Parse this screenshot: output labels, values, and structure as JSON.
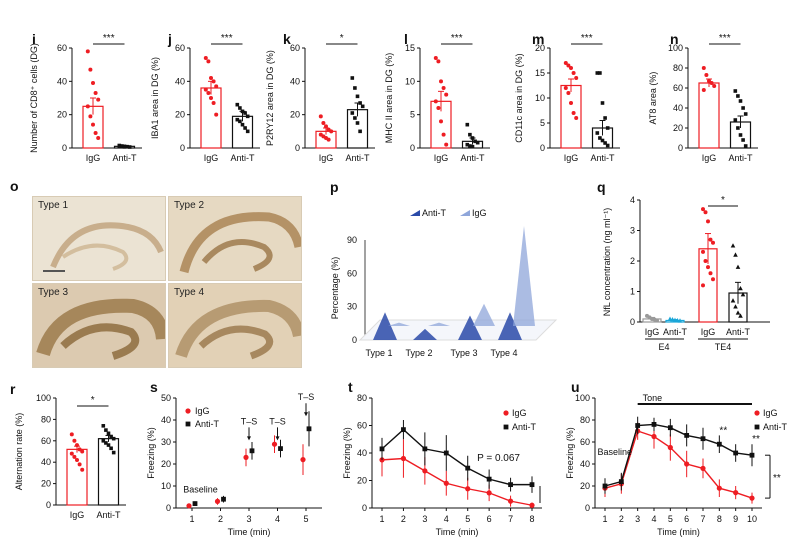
{
  "colors": {
    "igg": "#ee1d23",
    "antit": "#111111",
    "e4_igg": "#9a9a9a",
    "e4_antit": "#1aa6d8",
    "p_antit": "#2a4aa8",
    "p_igg": "#8fa6da"
  },
  "panel_letters": {
    "i": "i",
    "j": "j",
    "k": "k",
    "l": "l",
    "m": "m",
    "n": "n",
    "o": "o",
    "p": "p",
    "q": "q",
    "r": "r",
    "s": "s",
    "t": "t",
    "u": "u"
  },
  "micrographs": [
    {
      "label": "Type 1"
    },
    {
      "label": "Type 2"
    },
    {
      "label": "Type 3"
    },
    {
      "label": "Type 4"
    }
  ],
  "annotations": {
    "t_pvalue": "P = 0.067",
    "s_baseline": "Baseline",
    "s_ts": "T–S",
    "u_tone": "Tone",
    "u_baseline": "Baseline"
  },
  "chart_data": [
    {
      "id": "i",
      "type": "bar",
      "categories": [
        "IgG",
        "Anti-T"
      ],
      "values": [
        25,
        1
      ],
      "errors": [
        5,
        0.5
      ],
      "ylabel": "Number of CD8⁺ cells (DG)",
      "ylim": [
        0,
        60
      ],
      "yticks": [
        0,
        20,
        40,
        60
      ],
      "sig": "***",
      "points": [
        [
          58,
          47,
          39,
          33,
          29,
          25,
          19,
          14,
          9,
          6
        ],
        [
          1.5,
          1.2,
          1,
          0.8,
          0.6,
          1.1,
          0.9,
          0.7
        ]
      ]
    },
    {
      "id": "j",
      "type": "bar",
      "categories": [
        "IgG",
        "Anti-T"
      ],
      "values": [
        36,
        19
      ],
      "errors": [
        4,
        3
      ],
      "ylabel": "IBA1 area in DG (%)",
      "ylim": [
        0,
        60
      ],
      "yticks": [
        0,
        20,
        40,
        60
      ],
      "sig": "***",
      "points": [
        [
          54,
          52,
          42,
          40,
          37,
          35,
          33,
          30,
          27,
          20
        ],
        [
          26,
          24,
          22,
          21,
          19,
          17,
          16,
          14,
          12,
          10
        ]
      ]
    },
    {
      "id": "k",
      "type": "bar",
      "categories": [
        "IgG",
        "Anti-T"
      ],
      "values": [
        10,
        23
      ],
      "errors": [
        2,
        4
      ],
      "ylabel": "P2RY12 area in DG (%)",
      "ylim": [
        0,
        60
      ],
      "yticks": [
        0,
        20,
        40,
        60
      ],
      "sig": "*",
      "points": [
        [
          19,
          15,
          13,
          11,
          10,
          8,
          7,
          6,
          5
        ],
        [
          42,
          36,
          31,
          27,
          25,
          21,
          18,
          15,
          10
        ]
      ]
    },
    {
      "id": "l",
      "type": "bar",
      "categories": [
        "IgG",
        "Anti-T"
      ],
      "values": [
        7,
        1
      ],
      "errors": [
        1.5,
        0.5
      ],
      "ylabel": "MHC II area in DG (%)",
      "ylim": [
        0,
        15
      ],
      "yticks": [
        0,
        5,
        10,
        15
      ],
      "sig": "***",
      "points": [
        [
          13.5,
          13,
          10,
          9,
          8,
          7,
          6,
          4,
          2,
          0.5
        ],
        [
          3.5,
          2,
          1.5,
          1,
          0.8,
          0.5,
          0.3,
          0.2
        ]
      ]
    },
    {
      "id": "m",
      "type": "bar",
      "categories": [
        "IgG",
        "Anti-T"
      ],
      "values": [
        12.5,
        4
      ],
      "errors": [
        1.3,
        1.5
      ],
      "ylabel": "CD11c area in DG (%)",
      "ylim": [
        0,
        20
      ],
      "yticks": [
        0,
        5,
        10,
        15,
        20
      ],
      "sig": "***",
      "points": [
        [
          17,
          16.5,
          16,
          15,
          14,
          12,
          11,
          9,
          7,
          6
        ],
        [
          15,
          15,
          9,
          6,
          4,
          3,
          2,
          1.5,
          1,
          0.5
        ]
      ]
    },
    {
      "id": "n",
      "type": "bar",
      "categories": [
        "IgG",
        "Anti-T"
      ],
      "values": [
        65,
        26
      ],
      "errors": [
        4,
        6
      ],
      "ylabel": "AT8 area (%)",
      "ylim": [
        0,
        100
      ],
      "yticks": [
        0,
        20,
        40,
        60,
        80,
        100
      ],
      "sig": "***",
      "points": [
        [
          80,
          73,
          67,
          65,
          62,
          58
        ],
        [
          57,
          52,
          47,
          40,
          34,
          28,
          20,
          13,
          8,
          2
        ]
      ]
    },
    {
      "id": "p",
      "type": "area",
      "categories": [
        "Type 1",
        "Type 2",
        "Type 3",
        "Type 4"
      ],
      "series": [
        {
          "name": "Anti-T",
          "values": [
            25,
            10,
            22,
            25
          ]
        },
        {
          "name": "IgG",
          "values": [
            3,
            3,
            20,
            90
          ]
        }
      ],
      "ylabel": "Percentage (%)",
      "ylim": [
        0,
        90
      ],
      "yticks": [
        0,
        30,
        60,
        90
      ]
    },
    {
      "id": "q",
      "type": "bar",
      "groups": [
        "E4",
        "TE4"
      ],
      "categories": [
        "IgG",
        "Anti-T",
        "IgG",
        "Anti-T"
      ],
      "values": [
        0.1,
        0.05,
        2.4,
        0.95
      ],
      "errors": [
        0.05,
        0.03,
        0.5,
        0.35
      ],
      "ylabel": "NfL concentration (ng ml⁻¹)",
      "ylim": [
        0,
        4
      ],
      "yticks": [
        0,
        1,
        2,
        3,
        4
      ],
      "sig": "*",
      "points": [
        [
          0.2,
          0.15,
          0.1,
          0.08,
          0.05
        ],
        [
          0.1,
          0.08,
          0.06,
          0.05,
          0.04
        ],
        [
          3.7,
          3.6,
          3.3,
          2.7,
          2.6,
          2.3,
          2.0,
          1.8,
          1.6,
          1.4,
          1.2
        ],
        [
          2.5,
          2.2,
          1.8,
          1.1,
          0.9,
          0.7,
          0.5,
          0.3,
          0.2
        ]
      ]
    },
    {
      "id": "r",
      "type": "bar",
      "categories": [
        "IgG",
        "Anti-T"
      ],
      "values": [
        52,
        62
      ],
      "errors": [
        3,
        3
      ],
      "ylabel": "Alternation rate (%)",
      "ylim": [
        0,
        100
      ],
      "yticks": [
        0,
        20,
        40,
        60,
        80,
        100
      ],
      "sig": "*",
      "points": [
        [
          66,
          60,
          56,
          52,
          50,
          48,
          45,
          42,
          38,
          33
        ],
        [
          74,
          70,
          67,
          64,
          62,
          60,
          58,
          56,
          53,
          49
        ]
      ]
    },
    {
      "id": "s",
      "type": "scatter",
      "x": [
        1,
        2,
        3,
        4,
        5
      ],
      "series": [
        {
          "name": "IgG",
          "values": [
            1,
            3,
            23,
            29,
            22
          ],
          "errors": [
            1,
            1.5,
            4,
            4,
            7
          ]
        },
        {
          "name": "Anti-T",
          "values": [
            2,
            4,
            26,
            27,
            36
          ],
          "errors": [
            1,
            1.5,
            4,
            4,
            8
          ]
        }
      ],
      "xlabel": "Time (min)",
      "ylabel": "Freezing (%)",
      "ylim": [
        0,
        50
      ],
      "yticks": [
        0,
        10,
        20,
        30,
        40,
        50
      ],
      "xticks": [
        1,
        2,
        3,
        4,
        5
      ]
    },
    {
      "id": "t",
      "type": "line",
      "x": [
        1,
        2,
        3,
        4,
        5,
        6,
        7,
        8
      ],
      "series": [
        {
          "name": "IgG",
          "values": [
            35,
            36,
            27,
            18,
            14,
            11,
            5,
            2
          ],
          "errors": [
            12,
            14,
            10,
            9,
            8,
            6,
            4,
            2
          ]
        },
        {
          "name": "Anti-T",
          "values": [
            43,
            57,
            43,
            40,
            29,
            21,
            17,
            17
          ],
          "errors": [
            8,
            7,
            12,
            13,
            9,
            7,
            5,
            6
          ]
        }
      ],
      "xlabel": "Time (min)",
      "ylabel": "Freezing (%)",
      "ylim": [
        0,
        80
      ],
      "yticks": [
        0,
        20,
        40,
        60,
        80
      ],
      "xticks": [
        1,
        2,
        3,
        4,
        5,
        6,
        7,
        8
      ]
    },
    {
      "id": "u",
      "type": "line",
      "x": [
        1,
        2,
        3,
        4,
        5,
        6,
        7,
        8,
        9,
        10
      ],
      "series": [
        {
          "name": "IgG",
          "values": [
            18,
            22,
            70,
            65,
            55,
            40,
            36,
            18,
            14,
            9
          ],
          "errors": [
            8,
            9,
            8,
            11,
            12,
            12,
            9,
            8,
            6,
            5
          ]
        },
        {
          "name": "Anti-T",
          "values": [
            20,
            24,
            75,
            76,
            73,
            66,
            63,
            58,
            50,
            48
          ],
          "errors": [
            7,
            8,
            8,
            6,
            8,
            10,
            10,
            8,
            8,
            10
          ]
        }
      ],
      "xlabel": "Time (min)",
      "ylabel": "Freezing (%)",
      "ylim": [
        0,
        100
      ],
      "yticks": [
        0,
        20,
        40,
        60,
        80,
        100
      ],
      "xticks": [
        1,
        2,
        3,
        4,
        5,
        6,
        7,
        8,
        9,
        10
      ],
      "sig_points": [
        {
          "x": 8,
          "label": "**"
        },
        {
          "x": 10,
          "label": "**"
        }
      ],
      "sig_bracket": "**"
    }
  ]
}
